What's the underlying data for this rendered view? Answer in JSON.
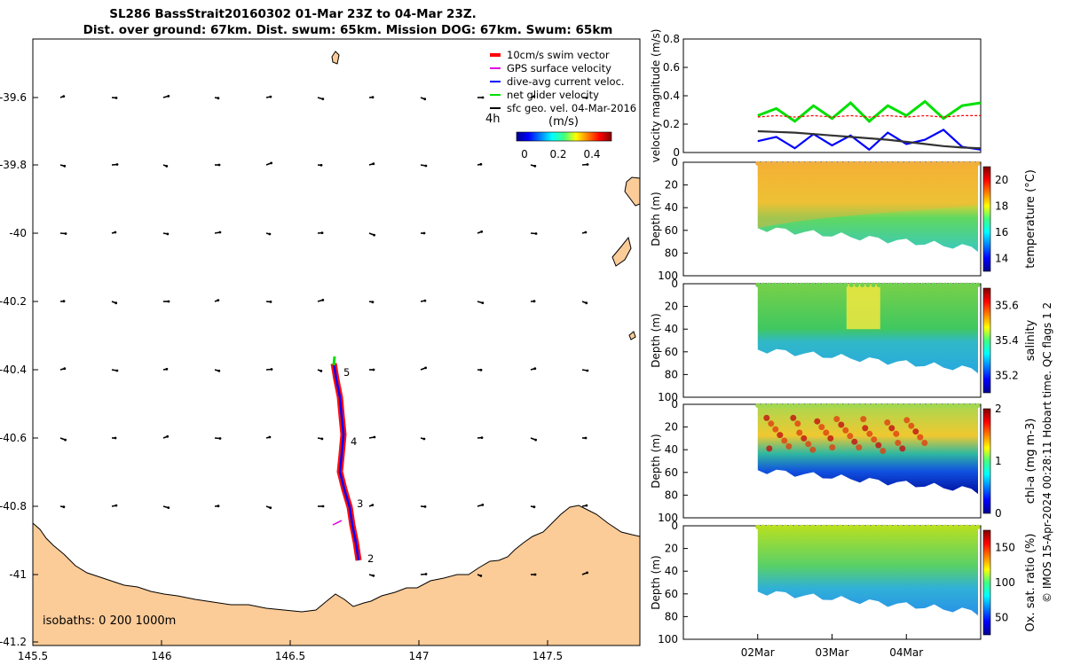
{
  "title": {
    "line1": "SL286 BassStrait20160302 01-Mar 23Z to 04-Mar 23Z.",
    "line2": "Dist. over ground: 67km. Dist. swum: 65km. Mission DOG: 67km. Swum: 65km"
  },
  "credit": "© IMOS 15-Apr-2024 00:28:11 Hobart time. QC flags 1  2",
  "colors": {
    "land": "#fbcb98",
    "track": "#ff0000",
    "dive_avg": "#0000ff",
    "net": "#00e000",
    "gps": "#e000e0",
    "sfc_geo": "#000000"
  },
  "map": {
    "legend": [
      {
        "label": "10cm/s swim vector",
        "color": "#ff0000"
      },
      {
        "label": "GPS surface velocity",
        "color": "#e000e0"
      },
      {
        "label": "dive-avg current veloc.",
        "color": "#0000ff"
      },
      {
        "label": "net glider velocity",
        "color": "#00e000"
      },
      {
        "label": "sfc geo. vel. 04-Mar-2016",
        "color": "#000000"
      }
    ],
    "interval_label": "4h",
    "speed_cbar_title": "(m/s)",
    "speed_cbar_ticks": [
      "0",
      "0.2",
      "0.4"
    ],
    "isobaths_label": "isobaths: 0   200  1000m",
    "x_ticks": [
      "145.5",
      "146",
      "146.5",
      "147",
      "147.5"
    ],
    "y_ticks": [
      "-39.6",
      "-39.8",
      "-40",
      "-40.2",
      "-40.4",
      "-40.6",
      "-40.8",
      "-41",
      "-41.2"
    ],
    "day_markers": [
      "5",
      "4",
      "3",
      "2"
    ]
  },
  "chart_data": [
    {
      "type": "line",
      "title": "",
      "xlabel": "",
      "ylabel": "velocity magnitude (m/s)",
      "ylim": [
        0,
        0.8
      ],
      "y_ticks": [
        "0",
        "0.2",
        "0.4",
        "0.6",
        "0.8"
      ],
      "x": [
        2.0,
        2.25,
        2.5,
        2.75,
        3.0,
        3.25,
        3.5,
        3.75,
        4.0,
        4.25,
        4.5,
        4.75,
        5.0
      ],
      "series": [
        {
          "name": "net glider velocity",
          "color": "#00e000",
          "values": [
            0.26,
            0.31,
            0.22,
            0.33,
            0.24,
            0.35,
            0.22,
            0.33,
            0.26,
            0.36,
            0.24,
            0.33,
            0.35
          ]
        },
        {
          "name": "swim",
          "color": "#ff0000",
          "values": [
            0.25,
            0.26,
            0.25,
            0.26,
            0.25,
            0.26,
            0.25,
            0.26,
            0.25,
            0.26,
            0.25,
            0.26,
            0.26
          ]
        },
        {
          "name": "dive-avg current veloc.",
          "color": "#0000ff",
          "values": [
            0.08,
            0.11,
            0.03,
            0.13,
            0.05,
            0.12,
            0.02,
            0.14,
            0.06,
            0.09,
            0.16,
            0.04,
            0.02
          ]
        },
        {
          "name": "sfc geo. vel.",
          "color": "#333333",
          "values": [
            0.15,
            0.145,
            0.14,
            0.13,
            0.12,
            0.11,
            0.1,
            0.09,
            0.075,
            0.06,
            0.045,
            0.035,
            0.03
          ]
        }
      ]
    },
    {
      "type": "heatmap",
      "ylabel": "Depth (m)",
      "ylim": [
        100,
        0
      ],
      "y_ticks": [
        "0",
        "20",
        "40",
        "60",
        "80",
        "100"
      ],
      "cbar_label": "temperature (°C)",
      "cbar_ticks": [
        "14",
        "16",
        "18",
        "20"
      ],
      "clim": [
        13,
        21
      ]
    },
    {
      "type": "heatmap",
      "ylabel": "Depth (m)",
      "ylim": [
        100,
        0
      ],
      "y_ticks": [
        "0",
        "20",
        "40",
        "60",
        "80",
        "100"
      ],
      "cbar_label": "salinity",
      "cbar_ticks": [
        "35.2",
        "35.4",
        "35.6"
      ],
      "clim": [
        35.1,
        35.7
      ]
    },
    {
      "type": "heatmap",
      "ylabel": "Depth (m)",
      "ylim": [
        100,
        0
      ],
      "y_ticks": [
        "0",
        "20",
        "40",
        "60",
        "80",
        "100"
      ],
      "cbar_label": "chl-a (mg m-3)",
      "cbar_ticks": [
        "0",
        "1",
        "2"
      ],
      "clim": [
        0,
        2
      ]
    },
    {
      "type": "heatmap",
      "ylabel": "Depth (m)",
      "ylim": [
        100,
        0
      ],
      "y_ticks": [
        "0",
        "20",
        "40",
        "60",
        "80",
        "100"
      ],
      "cbar_label": "Ox. sat. ratio (%)",
      "cbar_ticks": [
        "50",
        "100",
        "150"
      ],
      "clim": [
        25,
        175
      ],
      "x_ticks": [
        "02Mar",
        "03Mar",
        "04Mar"
      ]
    }
  ]
}
